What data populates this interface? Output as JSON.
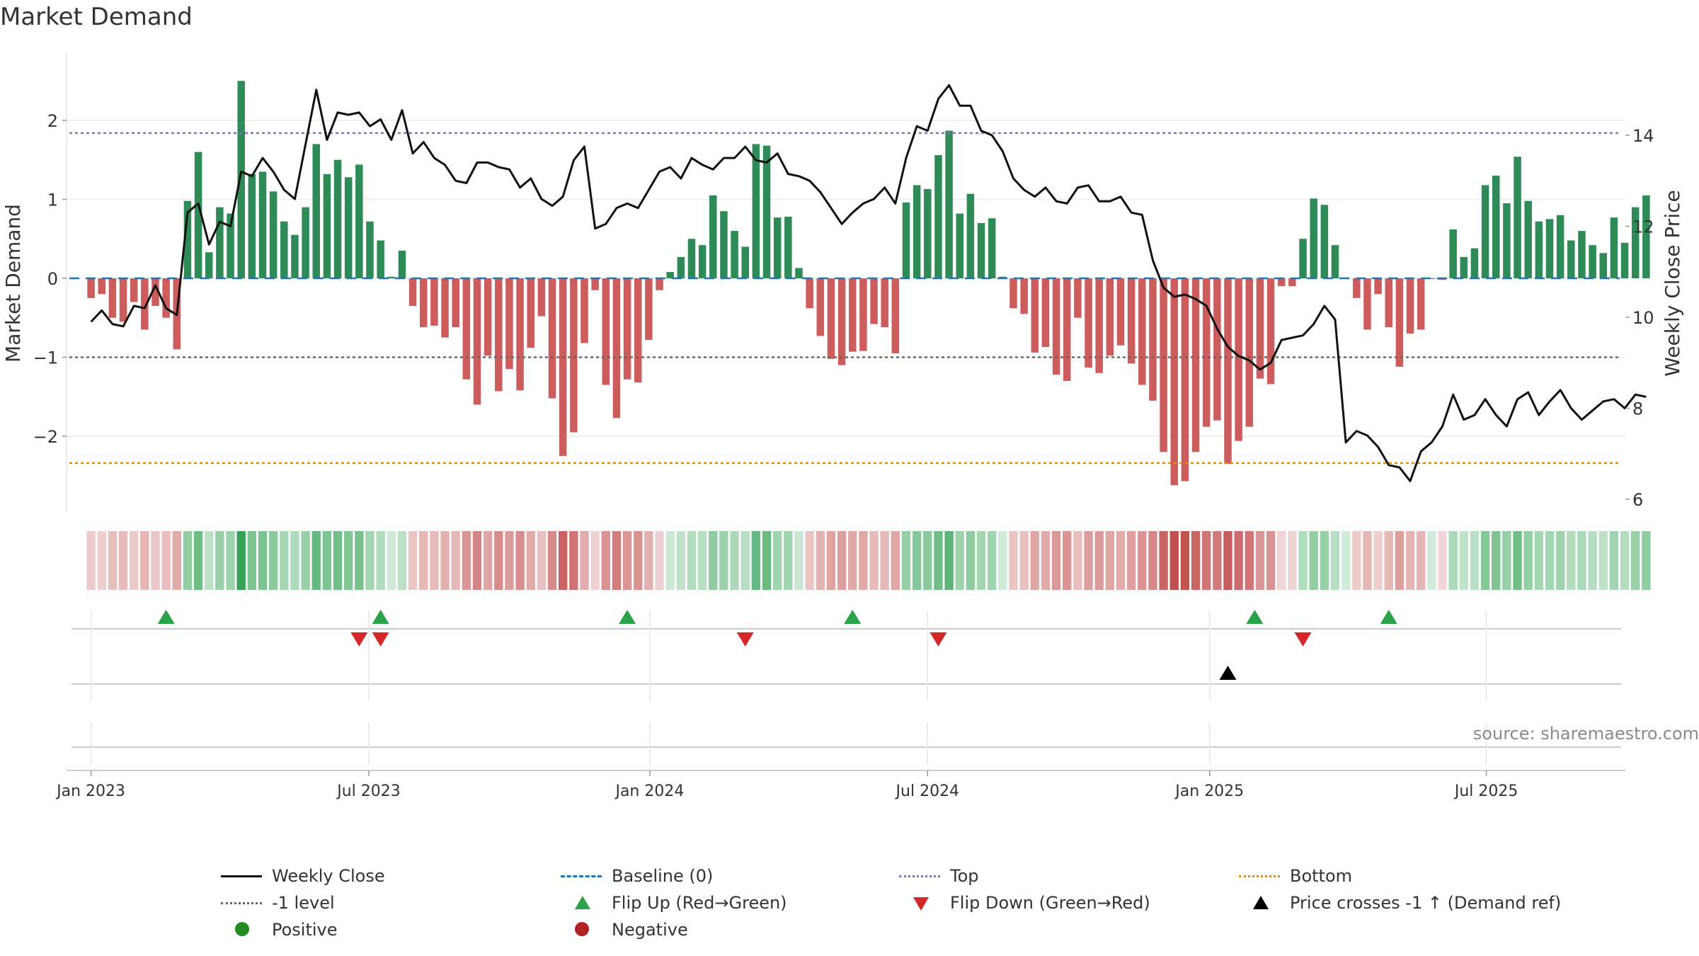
{
  "title": "Market Demand",
  "source": "source: sharemaestro.com",
  "colors": {
    "positive_bar": "#2e8b57",
    "negative_bar": "#cd5c5c",
    "close_line": "#111111",
    "baseline": "#1f77b4",
    "top": "#7b72c9",
    "minus_one": "#666666",
    "bottom": "#e08a1e",
    "flip_up": "#2aa24a",
    "flip_down": "#d62728",
    "cross": "#000000",
    "positive_dot": "#238b22",
    "negative_dot": "#b22222"
  },
  "legend": [
    {
      "key": "close",
      "label": "Weekly Close",
      "symbol": "line-solid",
      "color": "#111111"
    },
    {
      "key": "baseline",
      "label": "Baseline (0)",
      "symbol": "line-dash",
      "color": "#1f77b4"
    },
    {
      "key": "top",
      "label": "Top",
      "symbol": "line-dot",
      "color": "#7b72c9"
    },
    {
      "key": "bottom",
      "label": "Bottom",
      "symbol": "line-dot",
      "color": "#e08a1e"
    },
    {
      "key": "minus_one",
      "label": "-1 level",
      "symbol": "line-dot",
      "color": "#666666"
    },
    {
      "key": "flip_up",
      "label": "Flip Up (Red→Green)",
      "symbol": "triangle-up",
      "color": "#2aa24a"
    },
    {
      "key": "flip_down",
      "label": "Flip Down (Green→Red)",
      "symbol": "triangle-down",
      "color": "#d62728"
    },
    {
      "key": "cross",
      "label": "Price crosses -1 ↑ (Demand ref)",
      "symbol": "triangle-up",
      "color": "#000000"
    },
    {
      "key": "positive",
      "label": "Positive",
      "symbol": "dot",
      "color": "#238b22"
    },
    {
      "key": "negative",
      "label": "Negative",
      "symbol": "dot",
      "color": "#b22222"
    }
  ],
  "chart_data": {
    "type": "bar",
    "title": "Market Demand",
    "ylabel": "Market Demand",
    "y2label": "Weekly Close Price",
    "ylim": [
      -2.9,
      2.9
    ],
    "y2lim": [
      5.5,
      15.7
    ],
    "yticks": [
      -2,
      -1,
      0,
      1,
      2
    ],
    "y2ticks": [
      6,
      8,
      10,
      12,
      14
    ],
    "xlim_weeks": [
      -3,
      137
    ],
    "xticks": [
      {
        "label": "Jan 2023",
        "week": 0
      },
      {
        "label": "Jul 2023",
        "week": 25.9
      },
      {
        "label": "Jan 2024",
        "week": 52.1
      },
      {
        "label": "Jul 2024",
        "week": 78
      },
      {
        "label": "Jan 2025",
        "week": 104.3
      },
      {
        "label": "Jul 2025",
        "week": 130.1
      }
    ],
    "reference_lines": {
      "baseline": 0,
      "top": 1.84,
      "minus_one": -1,
      "bottom": -2.34
    },
    "demand": [
      -0.25,
      -0.2,
      -0.5,
      -0.55,
      -0.3,
      -0.65,
      -0.35,
      -0.5,
      -0.9,
      0.98,
      1.6,
      0.33,
      0.9,
      0.82,
      2.5,
      1.32,
      1.35,
      1.1,
      0.72,
      0.55,
      0.9,
      1.7,
      1.32,
      1.5,
      1.28,
      1.44,
      0.72,
      0.48,
      0.02,
      0.35,
      -0.35,
      -0.62,
      -0.6,
      -0.75,
      -0.62,
      -1.28,
      -1.6,
      -0.98,
      -1.43,
      -1.15,
      -1.42,
      -0.88,
      -0.48,
      -1.52,
      -2.25,
      -1.95,
      -0.82,
      -0.15,
      -1.35,
      -1.77,
      -1.28,
      -1.32,
      -0.78,
      -0.15,
      0.08,
      0.27,
      0.5,
      0.42,
      1.05,
      0.85,
      0.6,
      0.4,
      1.7,
      1.68,
      0.77,
      0.78,
      0.13,
      -0.38,
      -0.73,
      -1.02,
      -1.1,
      -0.93,
      -0.92,
      -0.58,
      -0.62,
      -0.95,
      0.96,
      1.18,
      1.13,
      1.56,
      1.87,
      0.82,
      1.07,
      0.7,
      0.76,
      0.02,
      -0.38,
      -0.45,
      -0.94,
      -0.87,
      -1.22,
      -1.3,
      -0.5,
      -1.13,
      -1.2,
      -0.98,
      -0.85,
      -1.08,
      -1.35,
      -1.55,
      -2.2,
      -2.62,
      -2.57,
      -2.2,
      -1.88,
      -1.8,
      -2.35,
      -2.06,
      -1.88,
      -1.27,
      -1.34,
      -0.1,
      -0.1,
      0.5,
      1.01,
      0.93,
      0.42,
      0.0,
      -0.25,
      -0.65,
      -0.2,
      -0.62,
      -1.12,
      -0.7,
      -0.65,
      0.0,
      -0.02,
      0.62,
      0.27,
      0.38,
      1.18,
      1.3,
      0.95,
      1.54,
      0.98,
      0.72,
      0.75,
      0.8,
      0.48,
      0.6,
      0.42,
      0.32,
      0.77,
      0.45,
      0.9,
      1.05
    ],
    "close": [
      9.9,
      10.15,
      9.85,
      9.8,
      10.25,
      10.2,
      10.7,
      10.2,
      10.05,
      12.3,
      12.5,
      11.6,
      12.1,
      12.0,
      13.2,
      13.1,
      13.5,
      13.2,
      12.8,
      12.6,
      13.8,
      15.0,
      13.9,
      14.5,
      14.45,
      14.5,
      14.2,
      14.35,
      13.9,
      14.55,
      13.6,
      13.85,
      13.5,
      13.35,
      13.0,
      12.95,
      13.4,
      13.4,
      13.3,
      13.25,
      12.85,
      13.05,
      12.6,
      12.45,
      12.65,
      13.45,
      13.75,
      11.95,
      12.05,
      12.4,
      12.5,
      12.4,
      12.8,
      13.2,
      13.3,
      13.05,
      13.5,
      13.35,
      13.25,
      13.5,
      13.5,
      13.75,
      13.45,
      13.4,
      13.6,
      13.15,
      13.1,
      13.0,
      12.75,
      12.4,
      12.05,
      12.3,
      12.5,
      12.6,
      12.85,
      12.5,
      13.5,
      14.2,
      14.1,
      14.8,
      15.1,
      14.65,
      14.65,
      14.1,
      14.0,
      13.65,
      13.05,
      12.8,
      12.65,
      12.85,
      12.55,
      12.5,
      12.85,
      12.9,
      12.55,
      12.55,
      12.65,
      12.3,
      12.25,
      11.25,
      10.65,
      10.45,
      10.5,
      10.4,
      10.25,
      9.75,
      9.35,
      9.15,
      9.05,
      8.85,
      9.0,
      9.5,
      9.55,
      9.6,
      9.85,
      10.25,
      9.95,
      7.25,
      7.5,
      7.4,
      7.15,
      6.75,
      6.7,
      6.4,
      7.05,
      7.25,
      7.6,
      8.3,
      7.75,
      7.85,
      8.2,
      7.85,
      7.6,
      8.2,
      8.35,
      7.85,
      8.15,
      8.4,
      8.0,
      7.75,
      7.95,
      8.15,
      8.2,
      8.0,
      8.3,
      8.25
    ],
    "flip_up_weeks": [
      7,
      27,
      50,
      71,
      108.5,
      121
    ],
    "flip_down_weeks": [
      25,
      27,
      61,
      79,
      113
    ],
    "cross_weeks": [
      106
    ]
  },
  "axis_labels": {
    "left": "Market Demand",
    "right": "Weekly Close Price"
  }
}
